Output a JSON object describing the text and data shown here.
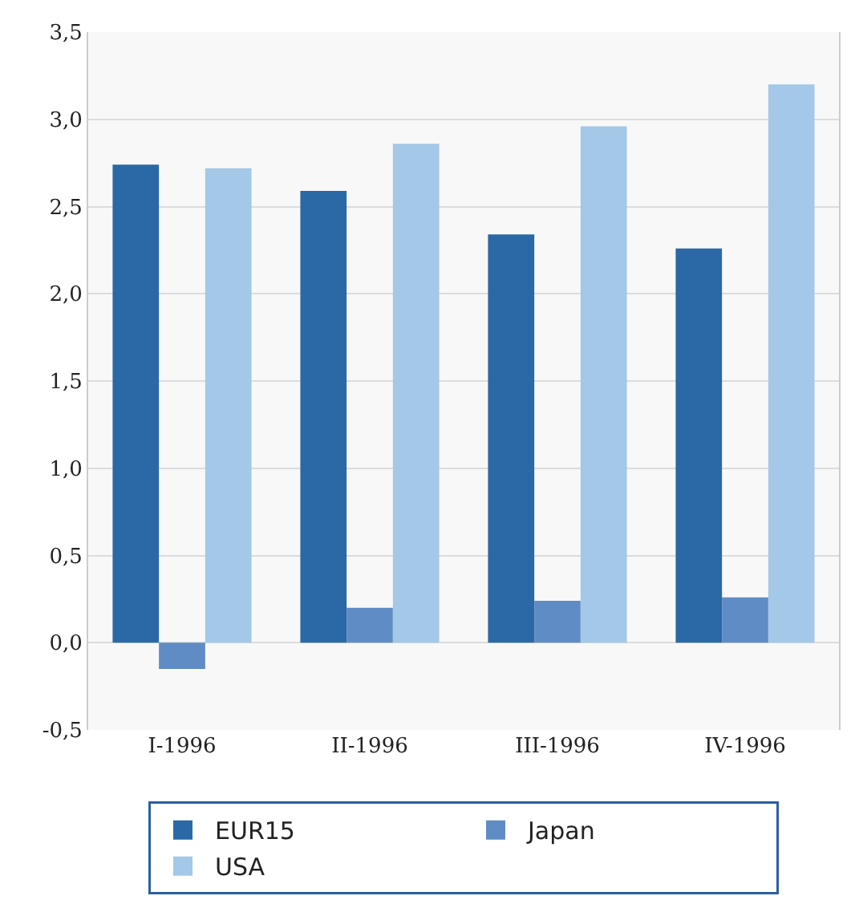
{
  "chart_data": {
    "type": "bar",
    "categories": [
      "I-1996",
      "II-1996",
      "III-1996",
      "IV-1996"
    ],
    "series": [
      {
        "name": "EUR15",
        "color": "#2a69a6",
        "values": [
          2.74,
          2.59,
          2.34,
          2.26
        ]
      },
      {
        "name": "Japan",
        "color": "#5f8cc4",
        "values": [
          -0.15,
          0.2,
          0.24,
          0.26
        ]
      },
      {
        "name": "USA",
        "color": "#a3c8e8",
        "values": [
          2.72,
          2.86,
          2.96,
          3.2
        ]
      }
    ],
    "ylim": [
      -0.5,
      3.5
    ],
    "yticks": [
      {
        "value": -0.5,
        "label": "-0,5"
      },
      {
        "value": 0,
        "label": "0,0"
      },
      {
        "value": 0.5,
        "label": "0,5"
      },
      {
        "value": 1,
        "label": "1,0"
      },
      {
        "value": 1.5,
        "label": "1,5"
      },
      {
        "value": 2,
        "label": "2,0"
      },
      {
        "value": 2.5,
        "label": "2,5"
      },
      {
        "value": 3,
        "label": "3,0"
      },
      {
        "value": 3.5,
        "label": "3,5"
      }
    ],
    "grid": "y",
    "legend": "bottom"
  }
}
